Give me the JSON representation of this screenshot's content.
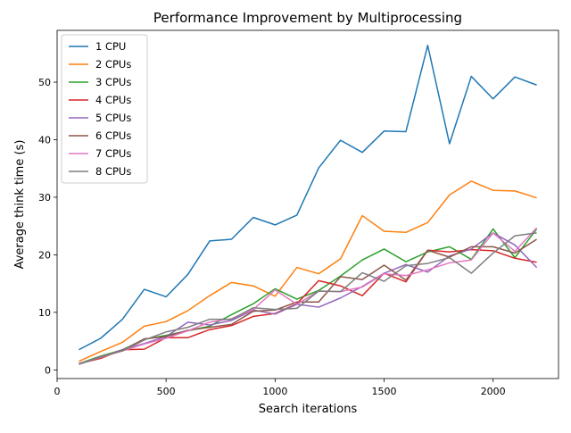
{
  "chart_data": {
    "type": "line",
    "title": "Performance Improvement by Multiprocessing",
    "xlabel": "Search iterations",
    "ylabel": "Average think time (s)",
    "xlim": [
      0,
      2300
    ],
    "ylim": [
      -1.5,
      59
    ],
    "xticks": [
      0,
      500,
      1000,
      1500,
      2000
    ],
    "yticks": [
      0,
      10,
      20,
      30,
      40,
      50
    ],
    "grid": false,
    "legend_position": "top-left",
    "x": [
      100,
      200,
      300,
      400,
      500,
      600,
      700,
      800,
      900,
      1000,
      1100,
      1200,
      1300,
      1400,
      1500,
      1600,
      1700,
      1800,
      1900,
      2000,
      2100,
      2200
    ],
    "series": [
      {
        "name": "1 CPU",
        "color": "#1f77b4",
        "values": [
          3.5,
          5.5,
          8.8,
          14.0,
          12.7,
          16.6,
          22.4,
          22.7,
          26.5,
          25.2,
          26.9,
          35.1,
          39.9,
          37.8,
          41.5,
          41.4,
          56.4,
          39.3,
          51.0,
          47.1,
          50.9,
          49.5
        ]
      },
      {
        "name": "2 CPUs",
        "color": "#ff7f0e",
        "values": [
          1.5,
          3.2,
          4.8,
          7.6,
          8.4,
          10.3,
          12.9,
          15.2,
          14.6,
          12.8,
          17.8,
          16.7,
          19.3,
          26.8,
          24.1,
          23.9,
          25.6,
          30.4,
          32.8,
          31.2,
          31.1,
          29.9
        ]
      },
      {
        "name": "3 CPUs",
        "color": "#2ca02c",
        "values": [
          1.1,
          2.4,
          3.5,
          5.3,
          6.0,
          6.8,
          7.6,
          9.6,
          11.5,
          14.1,
          12.3,
          13.8,
          16.3,
          19.1,
          21.0,
          18.8,
          20.5,
          21.4,
          19.2,
          24.5,
          19.5,
          24.5
        ]
      },
      {
        "name": "4 CPUs",
        "color": "#d62728",
        "values": [
          1.1,
          2.0,
          3.5,
          3.6,
          5.6,
          5.6,
          7.0,
          7.7,
          9.3,
          9.8,
          11.5,
          15.5,
          14.6,
          12.9,
          16.8,
          15.3,
          20.8,
          20.5,
          20.9,
          20.7,
          19.4,
          18.7
        ]
      },
      {
        "name": "5 CPUs",
        "color": "#9467bd",
        "values": [
          1.0,
          2.2,
          3.5,
          4.6,
          5.8,
          8.3,
          7.8,
          8.6,
          10.4,
          9.7,
          11.4,
          10.9,
          12.5,
          14.5,
          16.8,
          18.3,
          17.0,
          19.8,
          21.0,
          23.8,
          21.7,
          17.8
        ]
      },
      {
        "name": "6 CPUs",
        "color": "#8c564b",
        "values": [
          1.0,
          2.2,
          3.4,
          5.4,
          5.8,
          6.9,
          7.4,
          7.9,
          10.2,
          10.4,
          11.8,
          11.8,
          16.2,
          15.7,
          18.2,
          15.6,
          20.8,
          19.6,
          21.4,
          21.4,
          20.3,
          22.7
        ]
      },
      {
        "name": "7 CPUs",
        "color": "#e377c2",
        "values": [
          1.1,
          2.2,
          3.3,
          4.5,
          5.5,
          6.8,
          8.3,
          8.9,
          10.5,
          13.9,
          11.4,
          13.7,
          13.6,
          14.4,
          16.7,
          16.4,
          17.4,
          18.6,
          19.1,
          23.8,
          20.6,
          24.7
        ]
      },
      {
        "name": "8 CPUs",
        "color": "#7f7f7f",
        "values": [
          1.0,
          2.3,
          3.3,
          5.2,
          6.6,
          7.4,
          8.8,
          8.8,
          10.8,
          10.5,
          10.7,
          13.7,
          13.6,
          16.9,
          15.4,
          18.1,
          18.5,
          19.5,
          16.8,
          20.3,
          23.3,
          23.8
        ]
      }
    ]
  }
}
